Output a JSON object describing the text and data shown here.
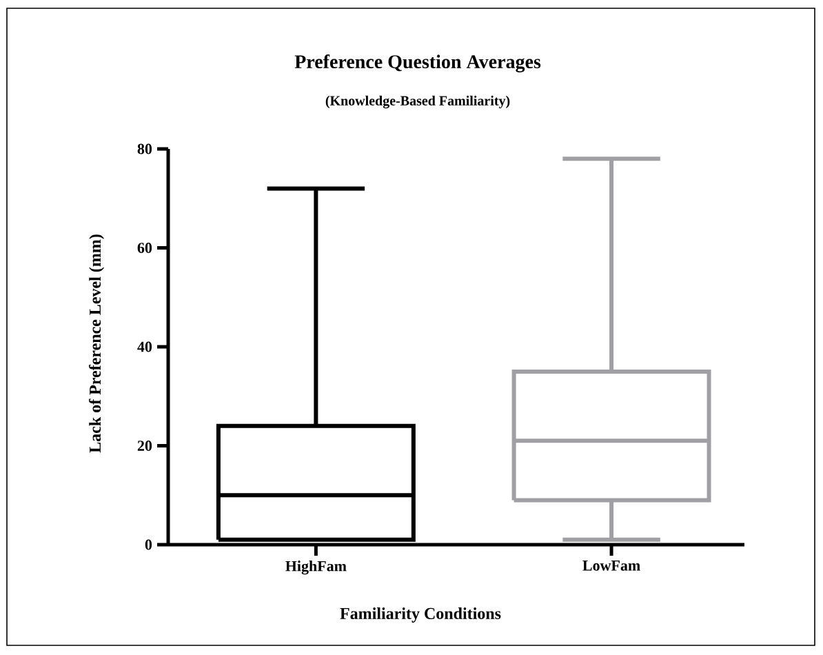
{
  "chart_data": {
    "type": "box",
    "title": "Preference Question Averages",
    "subtitle": "(Knowledge-Based Familiarity)",
    "xlabel": "Familiarity Conditions",
    "ylabel": "Lack of Preference Level (mm)",
    "categories": [
      "HighFam",
      "LowFam"
    ],
    "boxes": [
      {
        "low": 1,
        "q1": 1,
        "median": 10,
        "q3": 24,
        "high": 72
      },
      {
        "low": 1,
        "q1": 9,
        "median": 21,
        "q3": 35,
        "high": 78
      }
    ],
    "colors": [
      "#000000",
      "#a0a0a4"
    ],
    "ylim": [
      0,
      80
    ],
    "yticks": [
      0,
      20,
      40,
      60,
      80
    ]
  }
}
